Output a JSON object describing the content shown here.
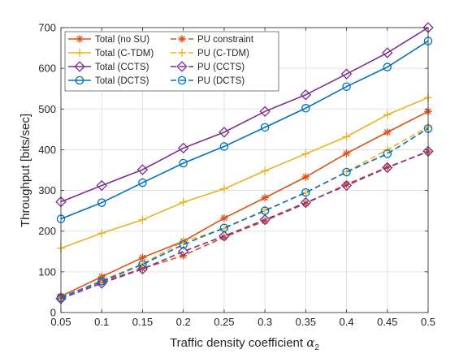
{
  "chart_data": {
    "type": "line",
    "title": "",
    "xlabel_text": "Traffic density coefficient ",
    "xlabel_symbol": "α",
    "xlabel_subscript": "2",
    "ylabel": "Throughput [bits/sec]",
    "xlim": [
      0.05,
      0.5
    ],
    "ylim": [
      0,
      700
    ],
    "x": [
      0.05,
      0.1,
      0.15,
      0.2,
      0.25,
      0.3,
      0.35,
      0.4,
      0.45,
      0.5
    ],
    "x_tick_labels": [
      "0.05",
      "0.1",
      "0.15",
      "0.2",
      "0.25",
      "0.3",
      "0.35",
      "0.4",
      "0.45",
      "0.5"
    ],
    "y_ticks": [
      0,
      100,
      200,
      300,
      400,
      500,
      600,
      700
    ],
    "grid": true,
    "legend_position": "top-left",
    "legend_columns": 2,
    "series": [
      {
        "name": "Total (no SU)",
        "color": "#D95319",
        "dash": "solid",
        "marker": "asterisk",
        "values": [
          40,
          88,
          135,
          175,
          232,
          282,
          333,
          391,
          443,
          494
        ]
      },
      {
        "name": "PU constraint",
        "color": "#D95319",
        "dash": "dashed",
        "marker": "asterisk",
        "values": [
          38,
          76,
          108,
          140,
          185,
          225,
          268,
          315,
          357,
          395
        ]
      },
      {
        "name": "Total (C-TDM)",
        "color": "#EDB120",
        "dash": "solid",
        "marker": "plus",
        "values": [
          158,
          195,
          228,
          271,
          304,
          348,
          390,
          432,
          486,
          528
        ]
      },
      {
        "name": "PU (C-TDM)",
        "color": "#EDB120",
        "dash": "dashed",
        "marker": "plus",
        "values": [
          38,
          78,
          120,
          174,
          206,
          252,
          294,
          346,
          400,
          456
        ]
      },
      {
        "name": "Total (CCTS)",
        "color": "#7E2F8E",
        "dash": "solid",
        "marker": "diamond",
        "values": [
          272,
          312,
          351,
          404,
          443,
          494,
          535,
          586,
          638,
          700
        ]
      },
      {
        "name": "PU (CCTS)",
        "color": "#7E2F8E",
        "dash": "dashed",
        "marker": "diamond",
        "values": [
          34,
          72,
          107,
          150,
          188,
          228,
          270,
          312,
          356,
          396
        ]
      },
      {
        "name": "Total (DCTS)",
        "color": "#0072BD",
        "dash": "solid",
        "marker": "circle",
        "values": [
          230,
          270,
          319,
          367,
          408,
          455,
          502,
          555,
          603,
          667
        ]
      },
      {
        "name": "PU (DCTS)",
        "color": "#0072BD",
        "dash": "dashed",
        "marker": "circle",
        "values": [
          37,
          77,
          118,
          167,
          208,
          250,
          295,
          345,
          390,
          452
        ]
      }
    ]
  }
}
